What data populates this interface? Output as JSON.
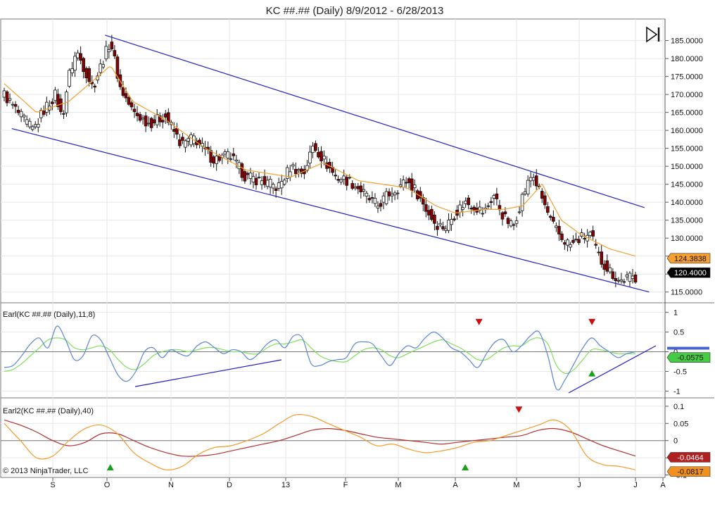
{
  "title": "KC ##.## (Daily)  8/9/2012 - 6/28/2013",
  "copyright": "© 2013 NinjaTrader, LLC",
  "colors": {
    "candle_up": "#ffffff",
    "candle_down": "#8b0000",
    "ma": "#f0a030",
    "trendline": "#2020c0",
    "earl_fast": "#5b84d4",
    "earl_slow": "#7ee05a",
    "earl2_fast": "#f39a2c",
    "earl2_slow": "#b03030"
  },
  "x_axis": {
    "labels": [
      "S",
      "O",
      "N",
      "D",
      "13",
      "F",
      "M",
      "A",
      "M",
      "J",
      "J",
      "A"
    ]
  },
  "chart_data": [
    {
      "type": "candlestick",
      "name": "KC ##.## (Daily)",
      "ylim": [
        112,
        191
      ],
      "y_ticks": [
        "185.0000",
        "180.0000",
        "175.0000",
        "170.0000",
        "165.0000",
        "160.0000",
        "155.0000",
        "150.0000",
        "145.0000",
        "140.0000",
        "135.0000",
        "130.0000",
        "125.0000",
        "120.0000",
        "115.0000"
      ],
      "y_tick_values": [
        185,
        180,
        175,
        170,
        165,
        160,
        155,
        150,
        145,
        140,
        135,
        130,
        125,
        120,
        115
      ],
      "close_path": [
        [
          0,
          170
        ],
        [
          10,
          164
        ],
        [
          18,
          160
        ],
        [
          25,
          166
        ],
        [
          32,
          170
        ],
        [
          36,
          163
        ],
        [
          40,
          175
        ],
        [
          45,
          182
        ],
        [
          50,
          177
        ],
        [
          55,
          172
        ],
        [
          60,
          178
        ],
        [
          66,
          185
        ],
        [
          72,
          172
        ],
        [
          80,
          165
        ],
        [
          90,
          162
        ],
        [
          100,
          164
        ],
        [
          110,
          156
        ],
        [
          118,
          158
        ],
        [
          125,
          154
        ],
        [
          130,
          152
        ],
        [
          140,
          153
        ],
        [
          150,
          147
        ],
        [
          160,
          146
        ],
        [
          170,
          144
        ],
        [
          178,
          150
        ],
        [
          186,
          148
        ],
        [
          192,
          156
        ],
        [
          198,
          152
        ],
        [
          206,
          147
        ],
        [
          214,
          146
        ],
        [
          220,
          144
        ],
        [
          226,
          141
        ],
        [
          232,
          139
        ],
        [
          238,
          142
        ],
        [
          244,
          144
        ],
        [
          250,
          146
        ],
        [
          256,
          143
        ],
        [
          262,
          138
        ],
        [
          268,
          134
        ],
        [
          274,
          133
        ],
        [
          280,
          137
        ],
        [
          286,
          140
        ],
        [
          292,
          139
        ],
        [
          298,
          137
        ],
        [
          304,
          142
        ],
        [
          310,
          136
        ],
        [
          316,
          133
        ],
        [
          322,
          142
        ],
        [
          328,
          148
        ],
        [
          334,
          141
        ],
        [
          340,
          134
        ],
        [
          346,
          130
        ],
        [
          352,
          128
        ],
        [
          358,
          130
        ],
        [
          364,
          131
        ],
        [
          370,
          124
        ],
        [
          376,
          121
        ],
        [
          382,
          118
        ],
        [
          388,
          119
        ],
        [
          392,
          119
        ]
      ],
      "ma_path": [
        [
          0,
          173
        ],
        [
          20,
          165
        ],
        [
          40,
          168
        ],
        [
          66,
          178
        ],
        [
          80,
          168
        ],
        [
          100,
          163
        ],
        [
          125,
          155
        ],
        [
          150,
          149
        ],
        [
          178,
          147
        ],
        [
          198,
          151
        ],
        [
          220,
          146
        ],
        [
          250,
          144
        ],
        [
          268,
          139
        ],
        [
          280,
          137
        ],
        [
          298,
          138
        ],
        [
          310,
          138
        ],
        [
          322,
          139
        ],
        [
          334,
          145
        ],
        [
          346,
          135
        ],
        [
          358,
          131
        ],
        [
          376,
          127
        ],
        [
          392,
          125
        ]
      ],
      "price_label": 120.4,
      "price_label_text": "120.4000",
      "ma_label": 124.3838,
      "ma_label_text": "124.3838",
      "trendlines": [
        {
          "from": [
            66,
            186.5
          ],
          "to": [
            407,
            138.5
          ]
        },
        {
          "from": [
            7,
            160.5
          ],
          "to": [
            410,
            115
          ]
        }
      ]
    },
    {
      "type": "line",
      "name": "Earl(KC ##.## (Daily),11,8)",
      "ylim": [
        -1.1,
        1.1
      ],
      "y_ticks": [
        "1",
        "0.5",
        "0",
        "-0.5",
        "-1"
      ],
      "y_tick_values": [
        1,
        0.5,
        0,
        -0.5,
        -1
      ],
      "series": [
        {
          "values": [
            -0.4,
            -0.35,
            -0.1,
            0.2,
            0.35,
            0.1,
            0.65,
            0.3,
            -0.2,
            -0.1,
            0.4,
            0.3,
            -0.15,
            -0.6,
            -0.75,
            -0.5,
            0.0,
            0.1,
            -0.15,
            0.05,
            -0.05,
            -0.1,
            0.15,
            0.25,
            0.1,
            -0.05,
            0.05,
            0.0,
            -0.2,
            -0.05,
            0.2,
            0.3,
            0.1,
            0.4,
            0.35,
            -0.3,
            -0.35,
            -0.25,
            -0.2,
            -0.15,
            0.2,
            0.25,
            0.2,
            -0.1,
            -0.35,
            -0.05,
            0.15,
            0.1,
            0.35,
            0.5,
            0.35,
            0.1,
            0.0,
            -0.2,
            -0.4,
            -0.05,
            0.25,
            0.3,
            0.0,
            0.15,
            0.4,
            0.5,
            -0.1,
            -0.95,
            -0.7,
            -0.3,
            0.1,
            0.35,
            0.15,
            0.0,
            -0.15,
            -0.05,
            0.0
          ]
        },
        {
          "values": [
            -0.5,
            -0.45,
            -0.3,
            -0.1,
            0.1,
            0.3,
            0.35,
            0.3,
            0.1,
            0.05,
            0.1,
            0.15,
            0.05,
            -0.2,
            -0.4,
            -0.45,
            -0.3,
            -0.1,
            0.0,
            0.05,
            0.05,
            0.0,
            0.05,
            0.1,
            0.1,
            0.05,
            0.0,
            0.0,
            -0.05,
            -0.05,
            0.1,
            0.2,
            0.2,
            0.25,
            0.3,
            0.1,
            -0.1,
            -0.2,
            -0.25,
            -0.25,
            -0.1,
            0.05,
            0.1,
            0.05,
            -0.1,
            -0.15,
            -0.05,
            0.05,
            0.15,
            0.25,
            0.3,
            0.2,
            0.1,
            -0.05,
            -0.2,
            -0.2,
            -0.05,
            0.1,
            0.15,
            0.15,
            0.3,
            0.35,
            0.2,
            -0.35,
            -0.55,
            -0.45,
            -0.2,
            0.05,
            0.05,
            0.0,
            -0.05,
            -0.05,
            -0.05
          ]
        }
      ],
      "value_label": -0.0575,
      "value_label_text": "-0.0575",
      "signals_down": [
        {
          "x": 72,
          "y": 0.78
        },
        {
          "x": 89,
          "y": 0.78
        }
      ],
      "signals_up": [
        {
          "x": 89,
          "y": -0.52
        }
      ]
    },
    {
      "type": "line",
      "name": "Earl2(KC ##.## (Daily),40)",
      "ylim": [
        -0.105,
        0.11
      ],
      "y_ticks": [
        "0.1",
        "0.05",
        "0",
        "-0.05",
        "-0.1"
      ],
      "y_tick_values": [
        0.1,
        0.05,
        0,
        -0.05,
        -0.1
      ],
      "series": [
        {
          "values": [
            0.05,
            0.0,
            -0.05,
            -0.045,
            0.0,
            0.035,
            0.045,
            0.02,
            -0.035,
            -0.065,
            -0.085,
            -0.075,
            -0.04,
            -0.02,
            -0.015,
            0.0,
            0.02,
            0.05,
            0.075,
            0.07,
            0.05,
            0.03,
            0.01,
            -0.015,
            -0.01,
            -0.025,
            -0.035,
            -0.03,
            -0.02,
            -0.005,
            0.0,
            0.015,
            0.03,
            0.045,
            0.06,
            0.03,
            -0.045,
            -0.07,
            -0.075,
            -0.085
          ]
        },
        {
          "values": [
            0.06,
            0.045,
            0.025,
            0.0,
            -0.015,
            -0.005,
            0.02,
            0.02,
            0.0,
            -0.02,
            -0.035,
            -0.045,
            -0.045,
            -0.04,
            -0.03,
            -0.02,
            -0.01,
            0.0,
            0.015,
            0.03,
            0.035,
            0.03,
            0.02,
            0.01,
            0.005,
            0.0,
            -0.005,
            -0.01,
            -0.005,
            0.0,
            0.005,
            0.01,
            0.015,
            0.03,
            0.035,
            0.025,
            0.005,
            -0.015,
            -0.03,
            -0.045
          ]
        }
      ],
      "value_label_1": -0.0464,
      "value_label_1_text": "-0.0464",
      "value_label_2": -0.0817,
      "value_label_2_text": "-0.0817",
      "signals_down": [
        {
          "x": 78,
          "y": 0.095
        }
      ],
      "signals_up": [
        {
          "x": 31,
          "y": -0.092
        },
        {
          "x": 89,
          "y": -0.092
        }
      ]
    }
  ]
}
